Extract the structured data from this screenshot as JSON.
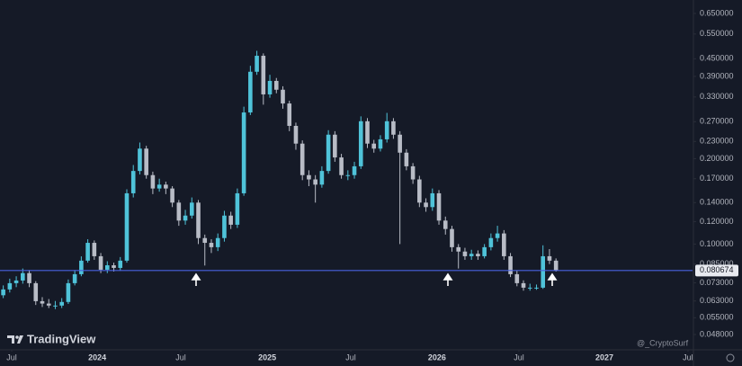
{
  "chart_data": {
    "type": "candlestick",
    "scale": "log",
    "grid": false,
    "up_color": "#4fc3d9",
    "down_color": "#b8bcc6",
    "line_color": "#4a63e0",
    "last_price": 0.080674,
    "watermark": "TradingView",
    "author": "@_CryptoSurf",
    "xlim": [
      -1,
      212
    ],
    "xticks": [
      {
        "value": 2.6,
        "label": "Jul"
      },
      {
        "value": 28.9,
        "label": "2024"
      },
      {
        "value": 54.6,
        "label": "Jul"
      },
      {
        "value": 81.2,
        "label": "2025"
      },
      {
        "value": 106.9,
        "label": "Jul"
      },
      {
        "value": 133.4,
        "label": "2026"
      },
      {
        "value": 158.6,
        "label": "Jul"
      },
      {
        "value": 184.9,
        "label": "2027"
      },
      {
        "value": 210.6,
        "label": "Jul"
      }
    ],
    "ylim": [
      0.0427,
      0.725
    ],
    "yticks": [
      {
        "value": 0.65,
        "label": "0.650000"
      },
      {
        "value": 0.55,
        "label": "0.550000"
      },
      {
        "value": 0.45,
        "label": "0.450000"
      },
      {
        "value": 0.39,
        "label": "0.390000"
      },
      {
        "value": 0.33,
        "label": "0.330000"
      },
      {
        "value": 0.27,
        "label": "0.270000"
      },
      {
        "value": 0.23,
        "label": "0.230000"
      },
      {
        "value": 0.2,
        "label": "0.200000"
      },
      {
        "value": 0.17,
        "label": "0.170000"
      },
      {
        "value": 0.14,
        "label": "0.140000"
      },
      {
        "value": 0.12,
        "label": "0.120000"
      },
      {
        "value": 0.1,
        "label": "0.100000"
      },
      {
        "value": 0.085,
        "label": "0.085000"
      },
      {
        "value": 0.073,
        "label": "0.073000"
      },
      {
        "value": 0.063,
        "label": "0.063000"
      },
      {
        "value": 0.055,
        "label": "0.055000"
      },
      {
        "value": 0.048,
        "label": "0.048000"
      }
    ],
    "x": [
      0,
      2,
      4,
      6,
      8,
      10,
      12,
      14,
      16,
      18,
      20,
      22,
      24,
      26,
      28,
      30,
      32,
      34,
      36,
      38,
      40,
      42,
      44,
      46,
      48,
      50,
      52,
      54,
      56,
      58,
      60,
      62,
      64,
      66,
      68,
      70,
      72,
      74,
      76,
      78,
      80,
      82,
      84,
      86,
      88,
      90,
      92,
      94,
      96,
      98,
      100,
      102,
      104,
      106,
      108,
      110,
      112,
      114,
      116,
      118,
      120,
      122,
      124,
      126,
      128,
      130,
      132,
      134,
      136,
      138,
      140,
      142,
      144,
      146,
      148,
      150,
      152,
      154,
      156,
      158,
      160,
      162,
      164,
      166,
      168,
      170
    ],
    "open": [
      0.066,
      0.0692,
      0.0728,
      0.0744,
      0.079,
      0.0728,
      0.0629,
      0.0617,
      0.0607,
      0.0607,
      0.0625,
      0.0728,
      0.0783,
      0.0874,
      0.101,
      0.0906,
      0.0812,
      0.0842,
      0.0824,
      0.0874,
      0.151,
      0.181,
      0.217,
      0.175,
      0.157,
      0.162,
      0.157,
      0.14,
      0.121,
      0.126,
      0.14,
      0.105,
      0.101,
      0.0975,
      0.105,
      0.126,
      0.117,
      0.151,
      0.291,
      0.405,
      0.461,
      0.337,
      0.376,
      0.35,
      0.313,
      0.261,
      0.226,
      0.175,
      0.169,
      0.162,
      0.181,
      0.243,
      0.202,
      0.175,
      0.175,
      0.188,
      0.271,
      0.226,
      0.217,
      0.234,
      0.271,
      0.243,
      0.21,
      0.188,
      0.169,
      0.14,
      0.135,
      0.151,
      0.121,
      0.113,
      0.0975,
      0.0941,
      0.0906,
      0.0924,
      0.0906,
      0.0975,
      0.105,
      0.109,
      0.0906,
      0.0783,
      0.0728,
      0.0702,
      0.0702,
      0.0702,
      0.0906,
      0.0874
    ],
    "high": [
      0.0715,
      0.0755,
      0.077,
      0.082,
      0.081,
      0.074,
      0.065,
      0.064,
      0.063,
      0.0645,
      0.075,
      0.081,
      0.0905,
      0.104,
      0.103,
      0.093,
      0.087,
      0.086,
      0.09,
      0.156,
      0.19,
      0.228,
      0.222,
      0.18,
      0.17,
      0.166,
      0.16,
      0.143,
      0.132,
      0.146,
      0.143,
      0.108,
      0.104,
      0.109,
      0.131,
      0.13,
      0.157,
      0.305,
      0.425,
      0.48,
      0.47,
      0.395,
      0.385,
      0.36,
      0.32,
      0.268,
      0.232,
      0.182,
      0.175,
      0.188,
      0.252,
      0.25,
      0.208,
      0.182,
      0.195,
      0.282,
      0.278,
      0.233,
      0.242,
      0.29,
      0.278,
      0.25,
      0.216,
      0.193,
      0.174,
      0.145,
      0.157,
      0.155,
      0.125,
      0.116,
      0.1,
      0.097,
      0.0955,
      0.095,
      0.1,
      0.109,
      0.116,
      0.112,
      0.093,
      0.0805,
      0.0745,
      0.0725,
      0.072,
      0.099,
      0.096,
      0.089
    ],
    "low": [
      0.0645,
      0.0675,
      0.0705,
      0.0725,
      0.0705,
      0.061,
      0.06,
      0.0595,
      0.059,
      0.0595,
      0.0615,
      0.0715,
      0.077,
      0.086,
      0.088,
      0.079,
      0.079,
      0.08,
      0.0805,
      0.086,
      0.146,
      0.176,
      0.17,
      0.15,
      0.153,
      0.15,
      0.135,
      0.116,
      0.117,
      0.123,
      0.1,
      0.084,
      0.093,
      0.0945,
      0.102,
      0.113,
      0.114,
      0.148,
      0.285,
      0.395,
      0.31,
      0.328,
      0.34,
      0.3,
      0.25,
      0.215,
      0.168,
      0.16,
      0.14,
      0.158,
      0.177,
      0.195,
      0.17,
      0.168,
      0.17,
      0.184,
      0.218,
      0.21,
      0.212,
      0.228,
      0.235,
      0.1,
      0.182,
      0.163,
      0.135,
      0.13,
      0.131,
      0.117,
      0.108,
      0.094,
      0.082,
      0.088,
      0.088,
      0.088,
      0.089,
      0.095,
      0.102,
      0.088,
      0.0765,
      0.071,
      0.0685,
      0.0685,
      0.069,
      0.0695,
      0.085,
      0.08
    ],
    "close": [
      0.0692,
      0.0728,
      0.0744,
      0.079,
      0.0728,
      0.0629,
      0.0617,
      0.0607,
      0.0607,
      0.0625,
      0.0728,
      0.0783,
      0.0874,
      0.101,
      0.0906,
      0.0812,
      0.0842,
      0.0824,
      0.0874,
      0.151,
      0.181,
      0.217,
      0.175,
      0.157,
      0.162,
      0.157,
      0.14,
      0.121,
      0.126,
      0.14,
      0.105,
      0.101,
      0.0975,
      0.105,
      0.126,
      0.117,
      0.151,
      0.291,
      0.405,
      0.461,
      0.337,
      0.376,
      0.35,
      0.313,
      0.261,
      0.226,
      0.175,
      0.169,
      0.162,
      0.181,
      0.243,
      0.202,
      0.175,
      0.175,
      0.188,
      0.271,
      0.226,
      0.217,
      0.234,
      0.271,
      0.243,
      0.21,
      0.188,
      0.169,
      0.14,
      0.135,
      0.151,
      0.121,
      0.113,
      0.0975,
      0.0941,
      0.0906,
      0.0924,
      0.0906,
      0.0975,
      0.105,
      0.109,
      0.0906,
      0.0783,
      0.0728,
      0.0702,
      0.0702,
      0.0702,
      0.0906,
      0.0874,
      0.0807
    ]
  }
}
